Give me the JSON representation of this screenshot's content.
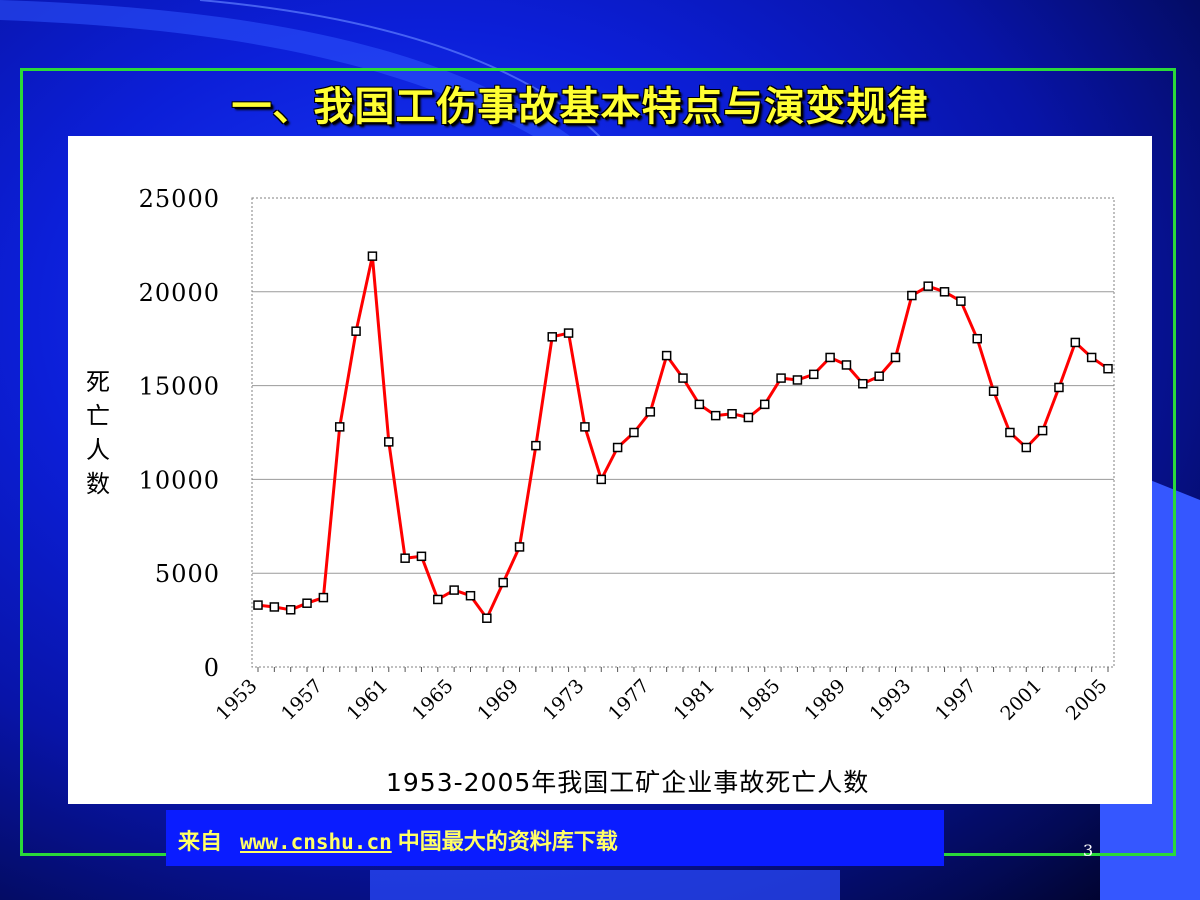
{
  "slide": {
    "title": "一、我国工伤事故基本特点与演变规律",
    "page_number": "3"
  },
  "footer": {
    "prefix": "来自",
    "link": "www.cnshu.cn",
    "suffix": "中国最大的资料库下载"
  },
  "colors": {
    "line": "#ff0000",
    "marker_fill": "#ffffff",
    "marker_stroke": "#000000",
    "frame": "#2bd93a",
    "title": "#ffff33"
  },
  "chart_data": {
    "type": "line",
    "title": "",
    "caption": "1953-2005年我国工矿企业事故死亡人数",
    "ylabel": "死亡人数",
    "xlabel": "",
    "ylim": [
      0,
      25000
    ],
    "yticks": [
      0,
      5000,
      10000,
      15000,
      20000,
      25000
    ],
    "xticks": [
      "1953",
      "1957",
      "1961",
      "1965",
      "1969",
      "1973",
      "1977",
      "1981",
      "1985",
      "1989",
      "1993",
      "1997",
      "2001",
      "2005"
    ],
    "grid": "horizontal",
    "x": [
      1953,
      1954,
      1955,
      1956,
      1957,
      1958,
      1959,
      1960,
      1961,
      1962,
      1963,
      1964,
      1965,
      1966,
      1967,
      1968,
      1969,
      1970,
      1971,
      1972,
      1973,
      1974,
      1975,
      1976,
      1977,
      1978,
      1979,
      1980,
      1981,
      1982,
      1983,
      1984,
      1985,
      1986,
      1987,
      1988,
      1989,
      1990,
      1991,
      1992,
      1993,
      1994,
      1995,
      1996,
      1997,
      1998,
      1999,
      2000,
      2001,
      2002,
      2003,
      2004,
      2005
    ],
    "series": [
      {
        "values": [
          3300,
          3200,
          3050,
          3400,
          3700,
          12800,
          17900,
          21900,
          12000,
          5800,
          5900,
          3600,
          4100,
          3800,
          2600,
          4500,
          6400,
          11800,
          17600,
          17800,
          12800,
          10000,
          11700,
          12500,
          13600,
          16600,
          15400,
          14000,
          13400,
          13500,
          13300,
          14000,
          15400,
          15300,
          15600,
          16500,
          16100,
          15100,
          15500,
          16500,
          19800,
          20300,
          20000,
          19500,
          17500,
          14700,
          12500,
          11700,
          12600,
          14900,
          17300,
          16500,
          15900
        ]
      }
    ]
  }
}
